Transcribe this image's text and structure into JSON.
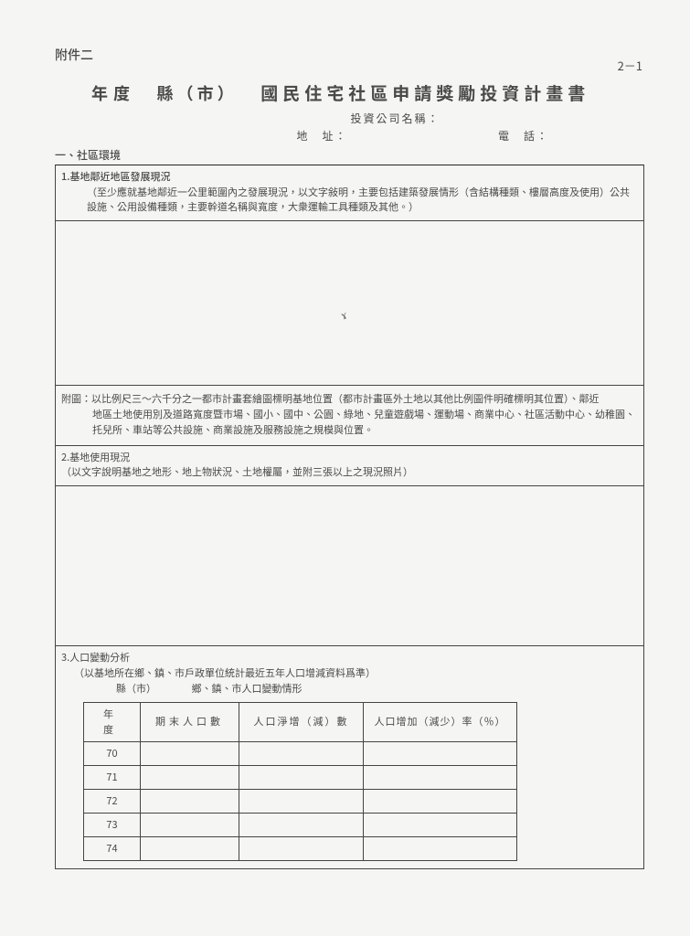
{
  "attachment": "附件二",
  "pagenum": "2－1",
  "title": {
    "year_label": "年度",
    "county_label": "縣（市）",
    "main": "國民住宅社區申請獎勵投資計畫書"
  },
  "meta": {
    "company_label": "投資公司名稱：",
    "address_label": "地　址：",
    "tel_label": "電　話："
  },
  "section1": {
    "heading": "一、社區環境",
    "box1": {
      "title": "1.基地鄰近地區發展現況",
      "note": "（至少應就基地鄰近一公里範圍內之發展現況，以文字敍明，主要包括建築發展情形（含結構種類、樓層高度及使用）公共設施、公用設備種類，主要幹道名稱與寬度，大衆運輸工具種類及其他。）"
    },
    "attach": {
      "label": "附圖：",
      "line1": "以比例尺三～六千分之一都市計畫套繪圖標明基地位置（都市計畫區外土地以其他比例圖件明確標明其位置）、鄰近",
      "line2": "地區土地使用別及道路寬度暨市場、國小、國中、公園、綠地、兒童遊戲場、運動場、商業中心、社區活動中心、幼稚園、托兒所、車站等公共設施、商業設施及服務設施之規模與位置。"
    },
    "box2": {
      "title": "2.基地使用現況",
      "note": "（以文字說明基地之地形、地上物狀況、土地權屬，並附三張以上之現況照片）"
    },
    "box3": {
      "title": "3.人口變動分析",
      "sub": "（以基地所在鄉、鎮、市戶政單位統計最近五年人口增減資料爲準）",
      "tab_head": "縣（市）　　　　鄉、鎮、市人口變動情形",
      "cols": [
        "年　度",
        "期末人口數",
        "人口淨增（減）數",
        "人口增加（減少）率（％）"
      ],
      "years": [
        "70",
        "71",
        "72",
        "73",
        "74"
      ]
    }
  }
}
